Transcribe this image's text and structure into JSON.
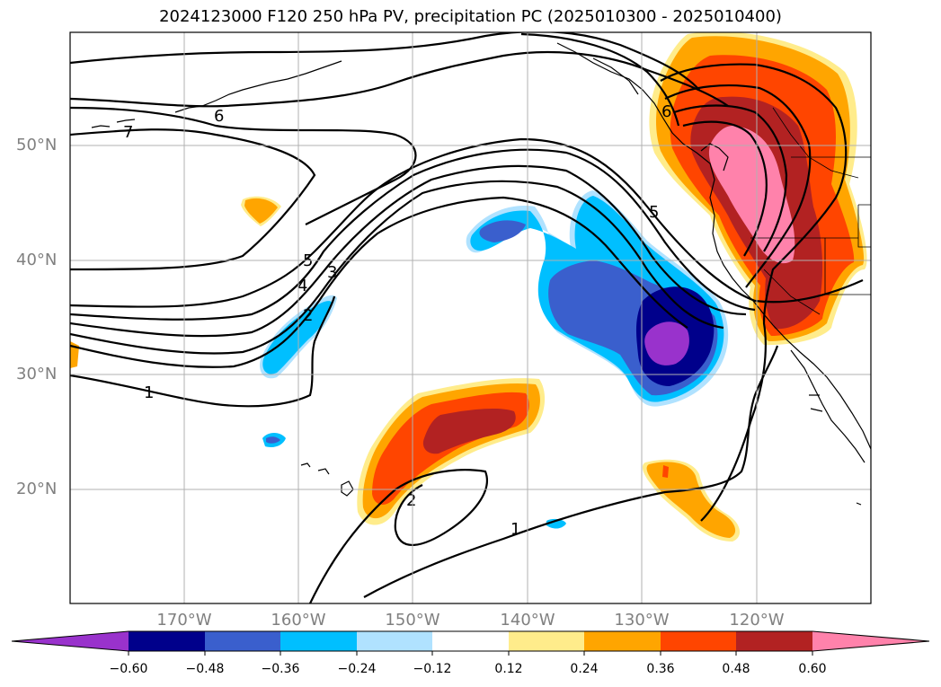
{
  "title": "2024123000 F120 250 hPa PV, precipitation PC (2025010300 - 2025010400)",
  "map": {
    "lat_labels": [
      "50°N",
      "40°N",
      "30°N",
      "20°N"
    ],
    "lon_labels": [
      "170°W",
      "160°W",
      "150°W",
      "140°W",
      "130°W",
      "120°W"
    ],
    "gridlines": true,
    "contour_variable": "250 hPa PV",
    "contour_labels": [
      "7",
      "6",
      "5",
      "4",
      "3",
      "2",
      "1",
      "5",
      "6",
      "2",
      "1"
    ],
    "shading_variable": "precipitation PC"
  },
  "colorbar": {
    "orientation": "horizontal",
    "extend": "both",
    "tick_labels": [
      "−0.60",
      "−0.48",
      "−0.36",
      "−0.24",
      "−0.12",
      "0.12",
      "0.24",
      "0.36",
      "0.48",
      "0.60"
    ],
    "levels": [
      -0.6,
      -0.48,
      -0.36,
      -0.24,
      -0.12,
      0.12,
      0.24,
      0.36,
      0.48,
      0.6
    ],
    "colors": [
      "#9932cc",
      "#00008b",
      "#3a5fcd",
      "#00bfff",
      "#b0e2ff",
      "#ffffff",
      "#ffec8b",
      "#ffa500",
      "#ff4500",
      "#b22222",
      "#ff82ab"
    ]
  }
}
